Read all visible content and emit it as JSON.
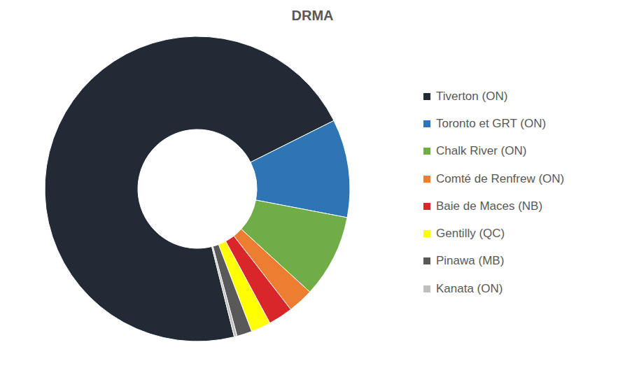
{
  "chart_data": {
    "type": "pie",
    "title": "DRMA",
    "categories": [
      "Tiverton (ON)",
      "Toronto et GRT (ON)",
      "Chalk River (ON)",
      "Comté de Renfrew (ON)",
      "Baie de Maces (NB)",
      "Gentilly (QC)",
      "Pinawa (MB)",
      "Kanata (ON)"
    ],
    "values": [
      71.5,
      10.4,
      8.8,
      2.7,
      2.6,
      2.1,
      1.6,
      0.3
    ],
    "colors": [
      "#222a35",
      "#2e75b6",
      "#70ad47",
      "#ed7d31",
      "#d9262b",
      "#ffff00",
      "#595959",
      "#bfbfbf"
    ],
    "legend": "right"
  }
}
